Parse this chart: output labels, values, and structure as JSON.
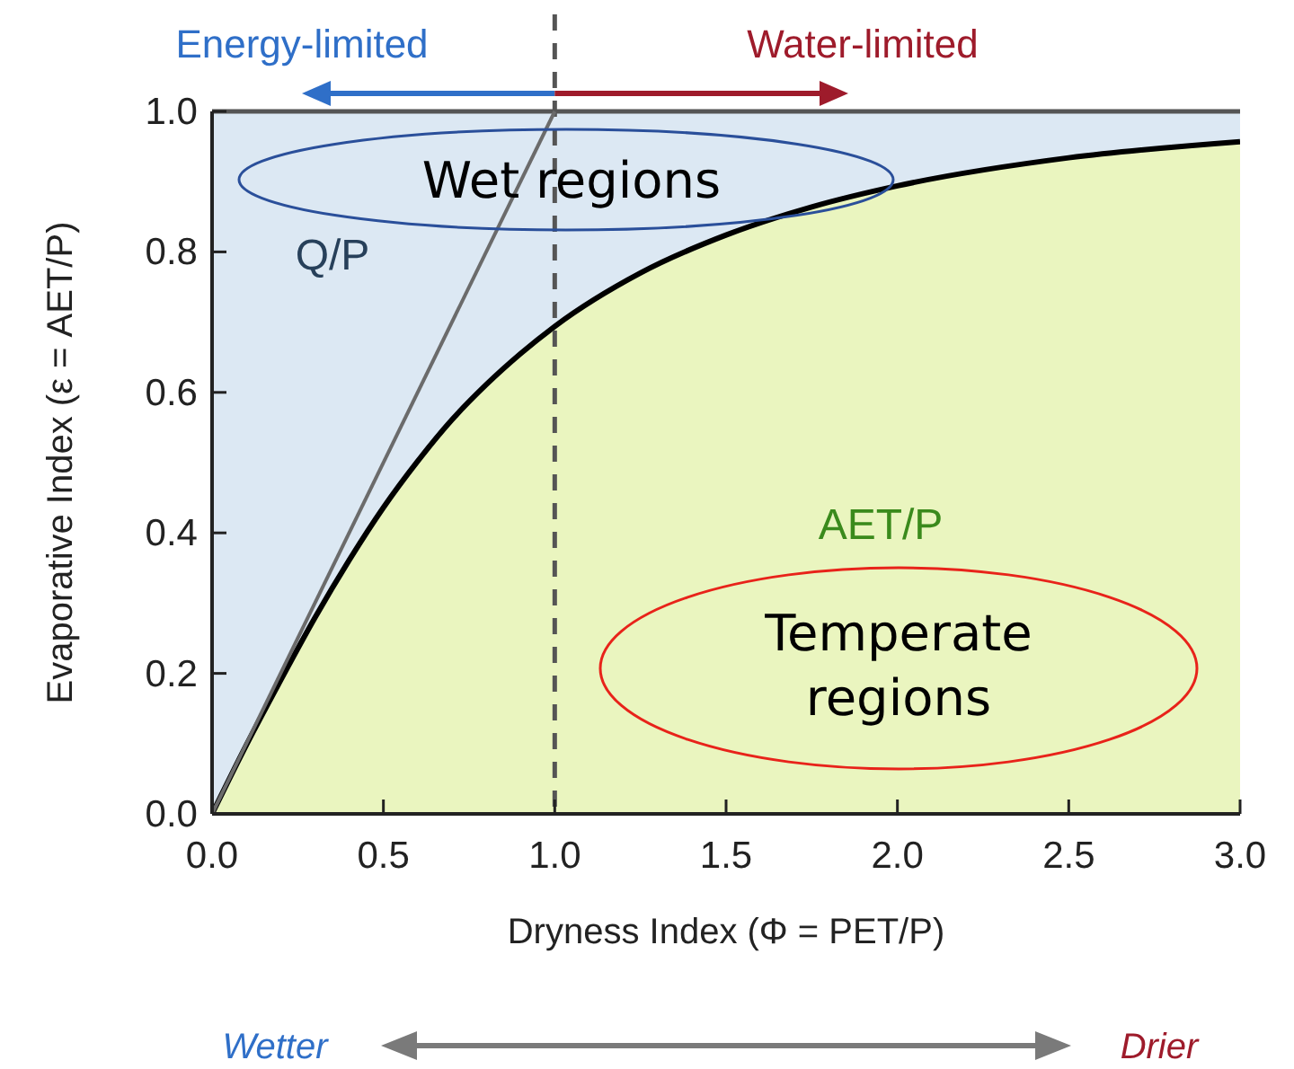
{
  "chart_data": {
    "type": "area",
    "xlabel": "Dryness Index (Φ = PET/P)",
    "ylabel": "Evaporative Index (ε = AET/P)",
    "x": [
      0,
      0.1,
      0.2,
      0.3,
      0.4,
      0.5,
      0.6,
      0.7,
      0.8,
      0.9,
      1.0,
      1.25,
      1.5,
      1.75,
      2.0,
      2.5,
      3.0
    ],
    "series": [
      {
        "color": "#eaf5bf",
        "values": [
          0,
          0.098,
          0.19,
          0.279,
          0.361,
          0.436,
          0.502,
          0.561,
          0.611,
          0.655,
          0.694,
          0.77,
          0.824,
          0.864,
          0.894,
          0.934,
          0.957
        ]
      },
      {
        "type": "line",
        "color": "#6b6b6b",
        "x": [
          0,
          1
        ],
        "values": [
          0,
          1
        ]
      }
    ],
    "xlim": [
      0,
      3
    ],
    "ylim": [
      0,
      1
    ],
    "xticks": [
      {
        "value": 0,
        "label": "0.0"
      },
      0.5,
      {
        "value": 1,
        "label": "1.0"
      },
      1.5,
      {
        "value": 2,
        "label": "2.0"
      },
      2.5,
      {
        "value": 3,
        "label": "3.0"
      }
    ],
    "yticks": [
      {
        "value": 0,
        "label": "0.0"
      },
      0.2,
      0.4,
      0.6,
      0.8,
      {
        "value": 1,
        "label": "1.0"
      }
    ],
    "bands": [
      {
        "axis": "y",
        "from": 0,
        "to": 1,
        "color": "#dce8f3"
      }
    ],
    "ref_lines": [
      {
        "axis": "y",
        "value": 1,
        "color": "#555555",
        "line_style": "solid"
      },
      {
        "axis": "x",
        "value": 1,
        "color": "#555555",
        "line_style": "dashed"
      }
    ],
    "annotations": [
      "Energy-limited",
      "Water-limited",
      "Wet regions",
      "Q/P",
      "AET/P",
      "Temperate regions",
      "Wetter",
      "Drier"
    ],
    "grid": false,
    "marker": "none"
  }
}
